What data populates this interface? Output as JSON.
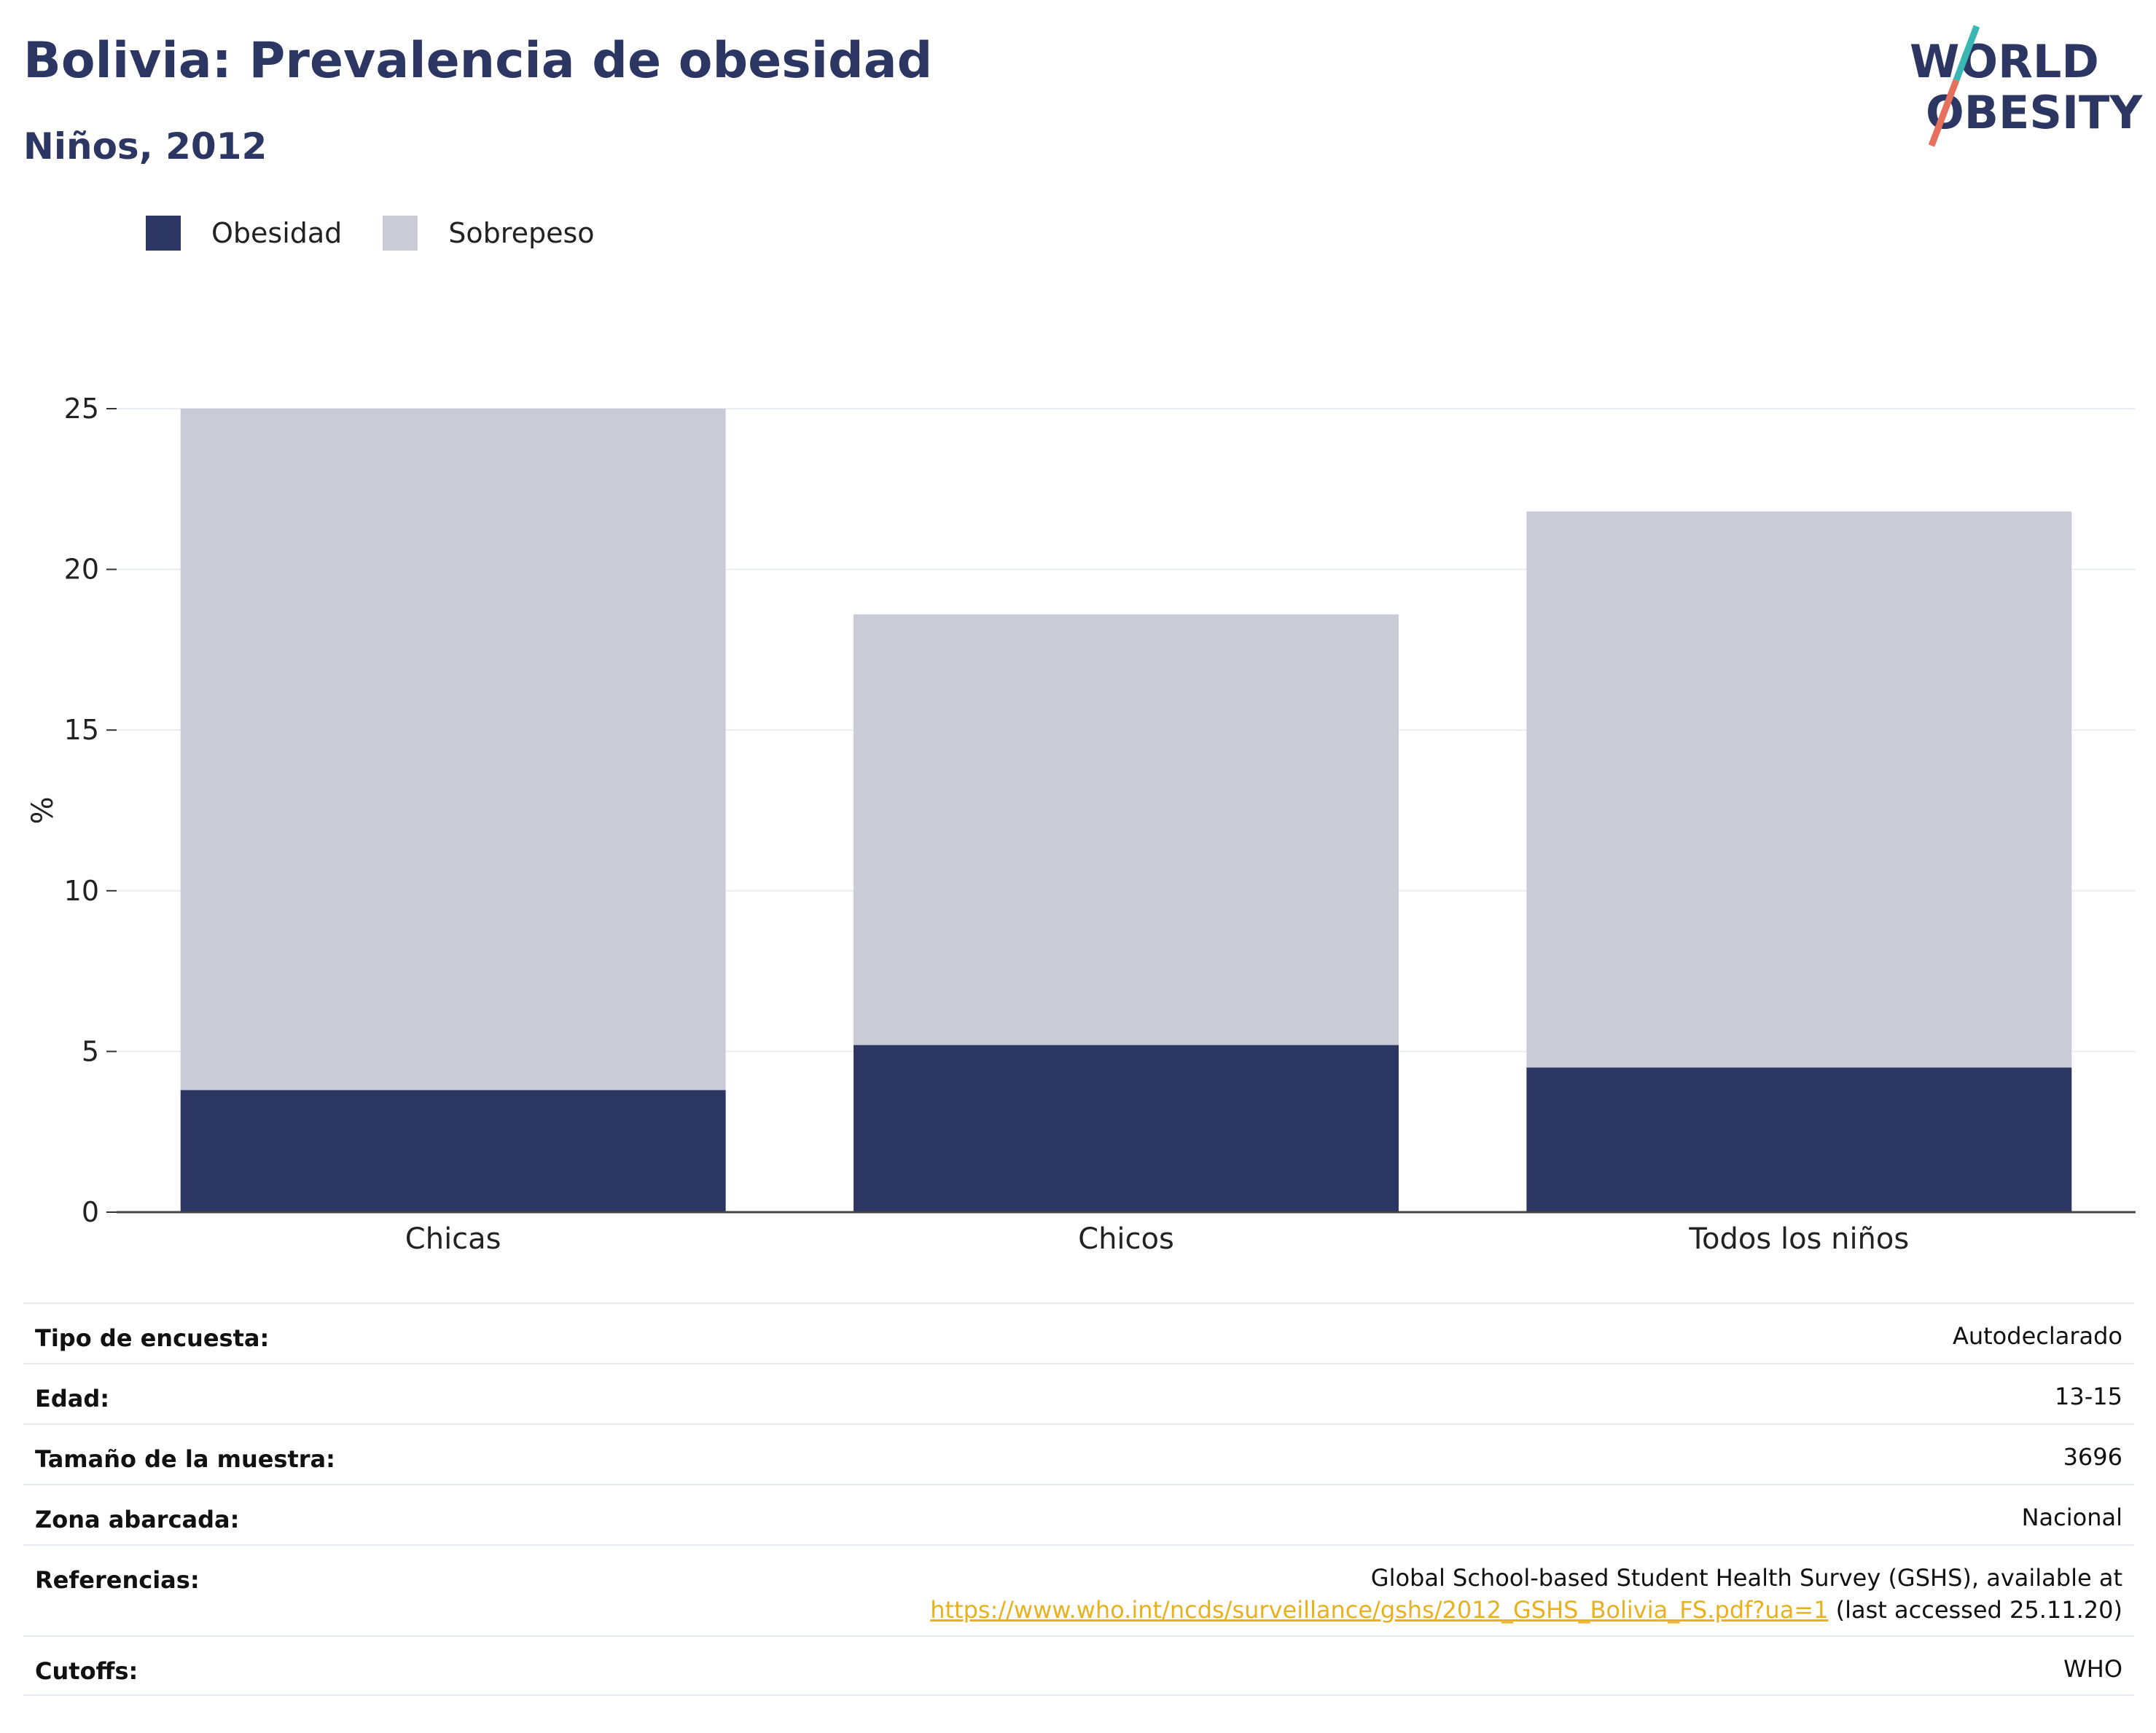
{
  "header": {
    "title": "Bolivia: Prevalencia de obesidad",
    "subtitle": "Niños, 2012",
    "logo_line1": "WORLD",
    "logo_line2": "OBESITY"
  },
  "legend": {
    "items": [
      {
        "label": "Obesidad",
        "color": "#2b3663"
      },
      {
        "label": "Sobrepeso",
        "color": "#c9cbd7"
      }
    ]
  },
  "chart_data": {
    "type": "bar",
    "stacked": true,
    "categories": [
      "Chicas",
      "Chicos",
      "Todos los niños"
    ],
    "series": [
      {
        "name": "Obesidad",
        "color": "#2b3663",
        "values": [
          3.8,
          5.2,
          4.5
        ]
      },
      {
        "name": "Sobrepeso",
        "color": "#c9cbd7",
        "values": [
          21.2,
          13.4,
          17.3
        ]
      }
    ],
    "ylabel": "%",
    "ylim": [
      0,
      25
    ],
    "yticks": [
      0,
      5,
      10,
      15,
      20,
      25
    ],
    "grid": true,
    "legend_position": "top-left"
  },
  "metadata": {
    "rows": [
      {
        "key": "Tipo de encuesta:",
        "value": "Autodeclarado"
      },
      {
        "key": "Edad:",
        "value": "13-15"
      },
      {
        "key": "Tamaño de la muestra:",
        "value": "3696"
      },
      {
        "key": "Zona abarcada:",
        "value": "Nacional"
      },
      {
        "key": "Referencias:",
        "value": "Global School-based Student Health Survey (GSHS), available at",
        "link": "https://www.who.int/ncds/surveillance/gshs/2012_GSHS_Bolivia_FS.pdf?ua=1",
        "suffix": " (last accessed 25.11.20)"
      },
      {
        "key": "Cutoffs:",
        "value": "WHO"
      }
    ]
  }
}
